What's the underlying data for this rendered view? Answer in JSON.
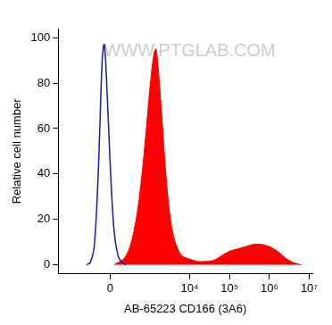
{
  "chart_data": {
    "type": "line",
    "watermark": "WWW.PTGLAB.COM",
    "x_label": "AB-65223 CD166 (3A6)",
    "y_label": "Relative cell number",
    "log": "x",
    "grid": false,
    "xlim": [
      -2000,
      12000000
    ],
    "xticks": [
      0,
      {
        "value": 10000,
        "label": "10⁴"
      },
      {
        "value": 100000,
        "label": "10⁵"
      },
      {
        "value": 1000000,
        "label": "10⁶"
      },
      {
        "value": 10000000,
        "label": "10⁷"
      }
    ],
    "ylim": [
      -4,
      104
    ],
    "yticks": [
      0,
      20,
      40,
      60,
      80,
      100
    ],
    "series": [
      {
        "color": "#ff0000",
        "fill": true,
        "x": [
          46,
          95,
          149,
          211,
          284,
          373,
          480,
          616,
          782,
          990,
          1252,
          1406,
          1580,
          1990,
          2506,
          3160,
          3980,
          5010,
          6320,
          10000,
          15850,
          25100,
          39800,
          63100,
          100000,
          158000,
          251000,
          398000,
          631000,
          1000000,
          1580000,
          2510000,
          3980000,
          6310000
        ],
        "values": [
          0,
          1,
          2,
          4,
          8,
          15,
          25,
          40,
          58,
          78,
          93,
          95,
          88,
          65,
          40,
          22,
          12,
          7,
          4,
          2.5,
          1.5,
          1.5,
          2,
          4,
          6,
          7,
          8,
          9,
          9,
          8,
          6,
          3,
          1,
          0
        ]
      },
      {
        "color": "#1a1aa6",
        "fill": false,
        "x": [
          -373,
          -284,
          -211,
          -149,
          -95,
          -70,
          -46,
          0,
          46,
          95,
          149,
          211
        ],
        "values": [
          0,
          1,
          8,
          40,
          90,
          97,
          85,
          45,
          15,
          4,
          1,
          0
        ]
      }
    ]
  }
}
